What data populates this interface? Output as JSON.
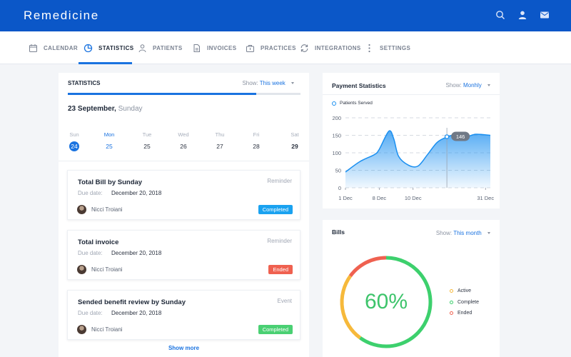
{
  "app": {
    "title": "Remedicine"
  },
  "topbar": {
    "icons": [
      "search-icon",
      "user-icon",
      "mail-icon"
    ]
  },
  "nav": {
    "items": [
      {
        "label": "CALENDAR",
        "icon": "calendar-icon"
      },
      {
        "label": "STATISTICS",
        "icon": "pie-chart-icon",
        "active": true
      },
      {
        "label": "PATIENTS",
        "icon": "person-icon"
      },
      {
        "label": "INVOICES",
        "icon": "document-icon"
      },
      {
        "label": "PRACTICES",
        "icon": "briefcase-icon"
      },
      {
        "label": "INTEGRATIONS",
        "icon": "sync-icon"
      },
      {
        "label": "SETTINGS",
        "icon": "vertical-dots-icon"
      }
    ]
  },
  "statistics": {
    "title": "STATISTICS",
    "show_label": "Show:",
    "show_value": "This week",
    "progress": 0.81,
    "date_text": "23 September,",
    "day_text": "Sunday",
    "week": [
      {
        "name": "Sun",
        "date": "24",
        "selected": true
      },
      {
        "name": "Mon",
        "date": "25",
        "today": true
      },
      {
        "name": "Tue",
        "date": "25"
      },
      {
        "name": "Wed",
        "date": "26"
      },
      {
        "name": "Thu",
        "date": "27"
      },
      {
        "name": "Fri",
        "date": "28"
      },
      {
        "name": "Sat",
        "date": "29",
        "bold": true
      }
    ],
    "tasks": [
      {
        "title": "Total Bill by Sunday",
        "type": "Reminder",
        "due_label": "Due date:",
        "due_date": "December 20, 2018",
        "person": "Nicci Troiani",
        "status": "Completed",
        "status_color": "#1aa2f0"
      },
      {
        "title": "Total invoice",
        "type": "Reminder",
        "due_label": "Due date:",
        "due_date": "December 20, 2018",
        "person": "Nicci Troiani",
        "status": "Ended",
        "status_color": "#ef6150"
      },
      {
        "title": "Sended benefit review by Sunday",
        "type": "Event",
        "due_label": "Due date:",
        "due_date": "December 20, 2018",
        "person": "Nicci Troiani",
        "status": "Completed",
        "status_color": "#4ad073"
      }
    ],
    "show_more": "Show more"
  },
  "payment": {
    "title": "Payment Statistics",
    "show_label": "Show:",
    "show_value": "Monhly",
    "chart_data": {
      "type": "area",
      "series": [
        {
          "name": "Patients Served",
          "x": [
            1,
            4,
            7,
            8,
            10,
            11,
            12,
            14,
            16,
            18,
            20,
            22,
            24,
            26,
            28,
            31
          ],
          "values": [
            45,
            75,
            95,
            110,
            162,
            140,
            90,
            65,
            62,
            95,
            130,
            145,
            152,
            146,
            153,
            150
          ]
        }
      ],
      "x_tick_labels": [
        "1 Dec",
        "8 Dec",
        "10 Dec",
        "31 Dec"
      ],
      "y_ticks": [
        0,
        50,
        100,
        150,
        200
      ],
      "ylim": [
        0,
        200
      ],
      "highlight": {
        "label": "146"
      },
      "grid": true,
      "legend": "top-left",
      "color": "#1a8ff0"
    }
  },
  "bills": {
    "title": "Bills",
    "show_label": "Show:",
    "show_value": "This month",
    "chart_data": {
      "type": "pie",
      "center_label": "60%",
      "slices": [
        {
          "name": "Active",
          "value": 25,
          "color": "#f6b93b"
        },
        {
          "name": "Complete",
          "value": 60,
          "color": "#3dd06d"
        },
        {
          "name": "Ended",
          "value": 15,
          "color": "#ef6150"
        }
      ]
    }
  }
}
